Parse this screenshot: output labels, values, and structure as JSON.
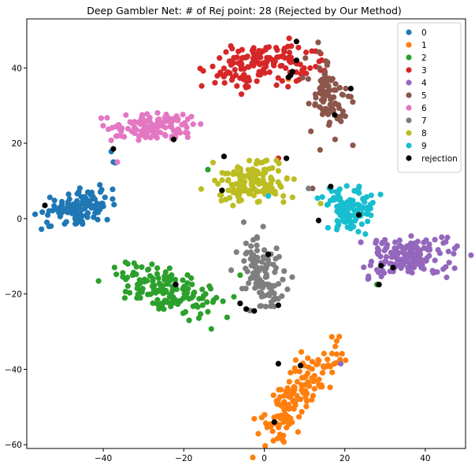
{
  "chart_data": {
    "type": "scatter",
    "title": "Deep Gambler Net: # of Rej point: 28 (Rejected by Our Method)",
    "xlabel": "",
    "ylabel": "",
    "xlim": [
      -59,
      50
    ],
    "ylim": [
      -61,
      53
    ],
    "xticks": [
      -40,
      -20,
      0,
      20,
      40
    ],
    "yticks": [
      -60,
      -40,
      -20,
      0,
      20,
      40
    ],
    "grid": false,
    "legend_position": "top-right",
    "series": [
      {
        "name": "0",
        "color": "#1f77b4",
        "clusters": [
          {
            "cx": -46,
            "cy": 3,
            "sx": 4.2,
            "sy": 2.2,
            "rot": 0.35,
            "n": 110
          }
        ],
        "points": [
          [
            -54,
            -1
          ],
          [
            -53,
            -2
          ],
          [
            -38,
            17.8
          ],
          [
            -37,
            14.8
          ],
          [
            -37.5,
            15
          ]
        ]
      },
      {
        "name": "1",
        "color": "#ff7f0e",
        "clusters": [
          {
            "cx": 9,
            "cy": -46,
            "sx": 8.5,
            "sy": 2.3,
            "rot": 1.0,
            "n": 150
          }
        ],
        "points": [
          [
            6,
            37
          ],
          [
            4,
            -53
          ],
          [
            18,
            -36
          ]
        ]
      },
      {
        "name": "2",
        "color": "#2ca02c",
        "clusters": [
          {
            "cx": -25,
            "cy": -19,
            "sx": 7,
            "sy": 2.8,
            "rot": -0.35,
            "n": 150
          }
        ],
        "points": [
          [
            -14,
            13
          ],
          [
            -6,
            -15
          ],
          [
            28,
            -17.5
          ]
        ]
      },
      {
        "name": "3",
        "color": "#d62728",
        "clusters": [
          {
            "cx": 0,
            "cy": 41,
            "sx": 6.5,
            "sy": 3.2,
            "rot": 0.1,
            "n": 150
          }
        ],
        "points": [
          [
            3.5,
            16
          ],
          [
            -4,
            35
          ]
        ]
      },
      {
        "name": "4",
        "color": "#9467bd",
        "clusters": [
          {
            "cx": 36,
            "cy": -10,
            "sx": 6,
            "sy": 2.8,
            "rot": 0.05,
            "n": 150
          }
        ],
        "points": [
          [
            19,
            -38.5
          ]
        ]
      },
      {
        "name": "5",
        "color": "#8c564b",
        "clusters": [
          {
            "cx": 16,
            "cy": 32,
            "sx": 2.8,
            "sy": 5.2,
            "rot": 0.2,
            "n": 90
          }
        ],
        "points": [
          [
            12,
            8
          ]
        ]
      },
      {
        "name": "6",
        "color": "#e377c2",
        "clusters": [
          {
            "cx": -27,
            "cy": 24.5,
            "sx": 5.5,
            "sy": 1.7,
            "rot": 0.05,
            "n": 120
          }
        ],
        "points": [
          [
            -36.5,
            15
          ]
        ]
      },
      {
        "name": "7",
        "color": "#7f7f7f",
        "clusters": [
          {
            "cx": -1,
            "cy": -15,
            "sx": 2.8,
            "sy": 5.2,
            "rot": 0.15,
            "n": 110
          }
        ],
        "points": [
          [
            11,
            8
          ]
        ]
      },
      {
        "name": "8",
        "color": "#bcbd22",
        "clusters": [
          {
            "cx": -3,
            "cy": 10,
            "sx": 4.8,
            "sy": 3,
            "rot": 0.1,
            "n": 130
          }
        ],
        "points": [
          [
            14,
            4
          ]
        ]
      },
      {
        "name": "9",
        "color": "#17becf",
        "clusters": [
          {
            "cx": 21,
            "cy": 3,
            "sx": 3.2,
            "sy": 3.3,
            "rot": 0.4,
            "n": 110
          }
        ],
        "points": [
          [
            1,
            6
          ]
        ]
      },
      {
        "name": "rejection",
        "color": "#000000",
        "clusters": [],
        "points": [
          [
            8,
            47
          ],
          [
            7,
            39
          ],
          [
            6.5,
            38
          ],
          [
            6,
            37.5
          ],
          [
            8,
            42
          ],
          [
            21.5,
            34.5
          ],
          [
            17.5,
            27.5
          ],
          [
            -37.5,
            18.5
          ],
          [
            -22.5,
            21
          ],
          [
            -10,
            16.5
          ],
          [
            -10.5,
            7.5
          ],
          [
            16.5,
            8.5
          ],
          [
            13.5,
            -0.5
          ],
          [
            23.5,
            1
          ],
          [
            29,
            -12.5
          ],
          [
            32,
            -13
          ],
          [
            28.5,
            -17.5
          ],
          [
            -22,
            -17.5
          ],
          [
            1,
            -9.5
          ],
          [
            -6,
            -22.5
          ],
          [
            -4.5,
            -24
          ],
          [
            -2.5,
            -24.5
          ],
          [
            3.5,
            -38.5
          ],
          [
            9,
            -39
          ],
          [
            2.5,
            -54
          ],
          [
            -54.5,
            3.5
          ],
          [
            5.5,
            16
          ],
          [
            3.5,
            -23
          ]
        ]
      }
    ]
  }
}
